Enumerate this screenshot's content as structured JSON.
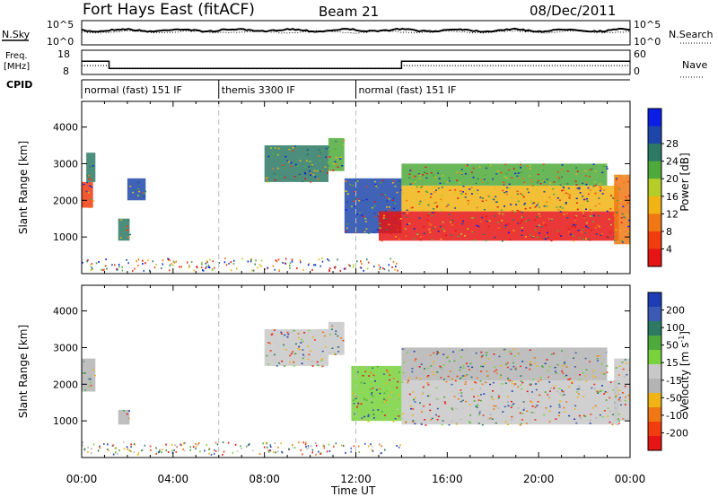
{
  "header": {
    "station": "Fort Hays East (fitACF)",
    "beam": "Beam 21",
    "date": "08/Dec/2011"
  },
  "noise_panel": {
    "left_label": "N.Sky",
    "right_label": "N.Search",
    "left_ticks": [
      "10^5",
      "10^0"
    ],
    "right_ticks": [
      "10^5",
      "10^0"
    ]
  },
  "freq_panel": {
    "left_label_line1": "Freq.",
    "left_label_line2": "[MHz]",
    "right_label": "Nave",
    "left_ticks": [
      "18",
      "8"
    ],
    "right_ticks": [
      "60",
      "0"
    ],
    "freq_mhz": {
      "t": [
        0,
        1.2,
        1.2,
        14.0,
        14.0,
        24.0
      ],
      "v": [
        13.5,
        13.5,
        10.5,
        10.5,
        13.5,
        13.5
      ]
    },
    "nave": {
      "t": [
        0,
        1.2,
        1.2,
        14.0,
        14.0,
        24.0
      ],
      "v": [
        22,
        22,
        14,
        14,
        22,
        22
      ]
    }
  },
  "cpid_panel": {
    "label": "CPID",
    "segments": [
      {
        "label": "normal (fast) 151 IF",
        "start_hour": 0,
        "end_hour": 6
      },
      {
        "label": "themis 3300 IF",
        "start_hour": 6,
        "end_hour": 12
      },
      {
        "label": "normal (fast) 151 IF",
        "start_hour": 12,
        "end_hour": 24
      }
    ]
  },
  "chart_data": [
    {
      "type": "heatmap",
      "name": "power",
      "ylabel": "Slant Range [km]",
      "y_ticks": [
        1000,
        2000,
        3000,
        4000
      ],
      "ylim": [
        0,
        4700
      ],
      "xlim": [
        0,
        24
      ],
      "colorbar_label": "Power [dB]",
      "colorbar_ticks": [
        "4",
        "8",
        "12",
        "16",
        "20",
        "24",
        "28"
      ],
      "colorbar_colors": [
        "#0a1ee6",
        "#1e46aa",
        "#2d7a64",
        "#4faa3c",
        "#b4cd28",
        "#f0b414",
        "#f07814",
        "#f03c0f",
        "#e61414"
      ],
      "regions": [
        {
          "t0": 0.0,
          "t1": 0.5,
          "r0": 1800,
          "r1": 2500,
          "color": "#f03c0f"
        },
        {
          "t0": 0.2,
          "t1": 0.6,
          "r0": 2500,
          "r1": 3300,
          "color": "#2d7a64"
        },
        {
          "t0": 1.6,
          "t1": 2.1,
          "r0": 900,
          "r1": 1500,
          "color": "#2d7a64"
        },
        {
          "t0": 2.0,
          "t1": 2.8,
          "r0": 2000,
          "r1": 2600,
          "color": "#1e46aa"
        },
        {
          "t0": 8.0,
          "t1": 10.8,
          "r0": 2500,
          "r1": 3500,
          "color": "#2d7a64"
        },
        {
          "t0": 10.8,
          "t1": 11.5,
          "r0": 2800,
          "r1": 3700,
          "color": "#4faa3c"
        },
        {
          "t0": 11.5,
          "t1": 14.0,
          "r0": 1100,
          "r1": 2600,
          "color": "#1e46aa"
        },
        {
          "t0": 13.0,
          "t1": 23.5,
          "r0": 900,
          "r1": 1700,
          "color": "#e61414"
        },
        {
          "t0": 14.0,
          "t1": 23.5,
          "r0": 1700,
          "r1": 2400,
          "color": "#f0b414"
        },
        {
          "t0": 14.0,
          "t1": 23.0,
          "r0": 2400,
          "r1": 3000,
          "color": "#4faa3c"
        },
        {
          "t0": 23.3,
          "t1": 24.0,
          "r0": 800,
          "r1": 2700,
          "color": "#f07814"
        }
      ]
    },
    {
      "type": "heatmap",
      "name": "velocity",
      "ylabel": "Slant Range [km]",
      "y_ticks": [
        1000,
        2000,
        3000,
        4000
      ],
      "ylim": [
        0,
        4700
      ],
      "xlim": [
        0,
        24
      ],
      "colorbar_label": "Velocity [m s^-1]",
      "colorbar_ticks": [
        "200",
        "100",
        "50",
        "15",
        "-15",
        "-50",
        "-100",
        "-200"
      ],
      "colorbar_colors": [
        "#1e3cb4",
        "#3c5ab4",
        "#2d7a64",
        "#4faa3c",
        "#78d23c",
        "#c8c8c8",
        "#b4b4b4",
        "#f0b414",
        "#f07814",
        "#f03c0f",
        "#e61414"
      ],
      "regions": [
        {
          "t0": 0.0,
          "t1": 0.6,
          "r0": 1800,
          "r1": 2700,
          "color": "#b4b4b4"
        },
        {
          "t0": 1.6,
          "t1": 2.1,
          "r0": 900,
          "r1": 1300,
          "color": "#b4b4b4"
        },
        {
          "t0": 8.0,
          "t1": 10.8,
          "r0": 2500,
          "r1": 3500,
          "color": "#c8c8c8"
        },
        {
          "t0": 10.8,
          "t1": 11.5,
          "r0": 2800,
          "r1": 3700,
          "color": "#c8c8c8"
        },
        {
          "t0": 11.8,
          "t1": 14.0,
          "r0": 1000,
          "r1": 2500,
          "color": "#78d23c"
        },
        {
          "t0": 14.0,
          "t1": 23.5,
          "r0": 900,
          "r1": 2100,
          "color": "#c8c8c8"
        },
        {
          "t0": 14.0,
          "t1": 23.0,
          "r0": 2100,
          "r1": 3000,
          "color": "#b4b4b4"
        },
        {
          "t0": 23.3,
          "t1": 24.0,
          "r0": 1000,
          "r1": 2700,
          "color": "#c8c8c8"
        }
      ]
    }
  ],
  "x_axis": {
    "label": "Time UT",
    "ticks": [
      {
        "hour": 0,
        "label": "00:00"
      },
      {
        "hour": 4,
        "label": "04:00"
      },
      {
        "hour": 8,
        "label": "08:00"
      },
      {
        "hour": 12,
        "label": "12:00"
      },
      {
        "hour": 16,
        "label": "16:00"
      },
      {
        "hour": 20,
        "label": "20:00"
      },
      {
        "hour": 24,
        "label": "00:00"
      }
    ],
    "dashed_boundaries": [
      6,
      12
    ]
  }
}
